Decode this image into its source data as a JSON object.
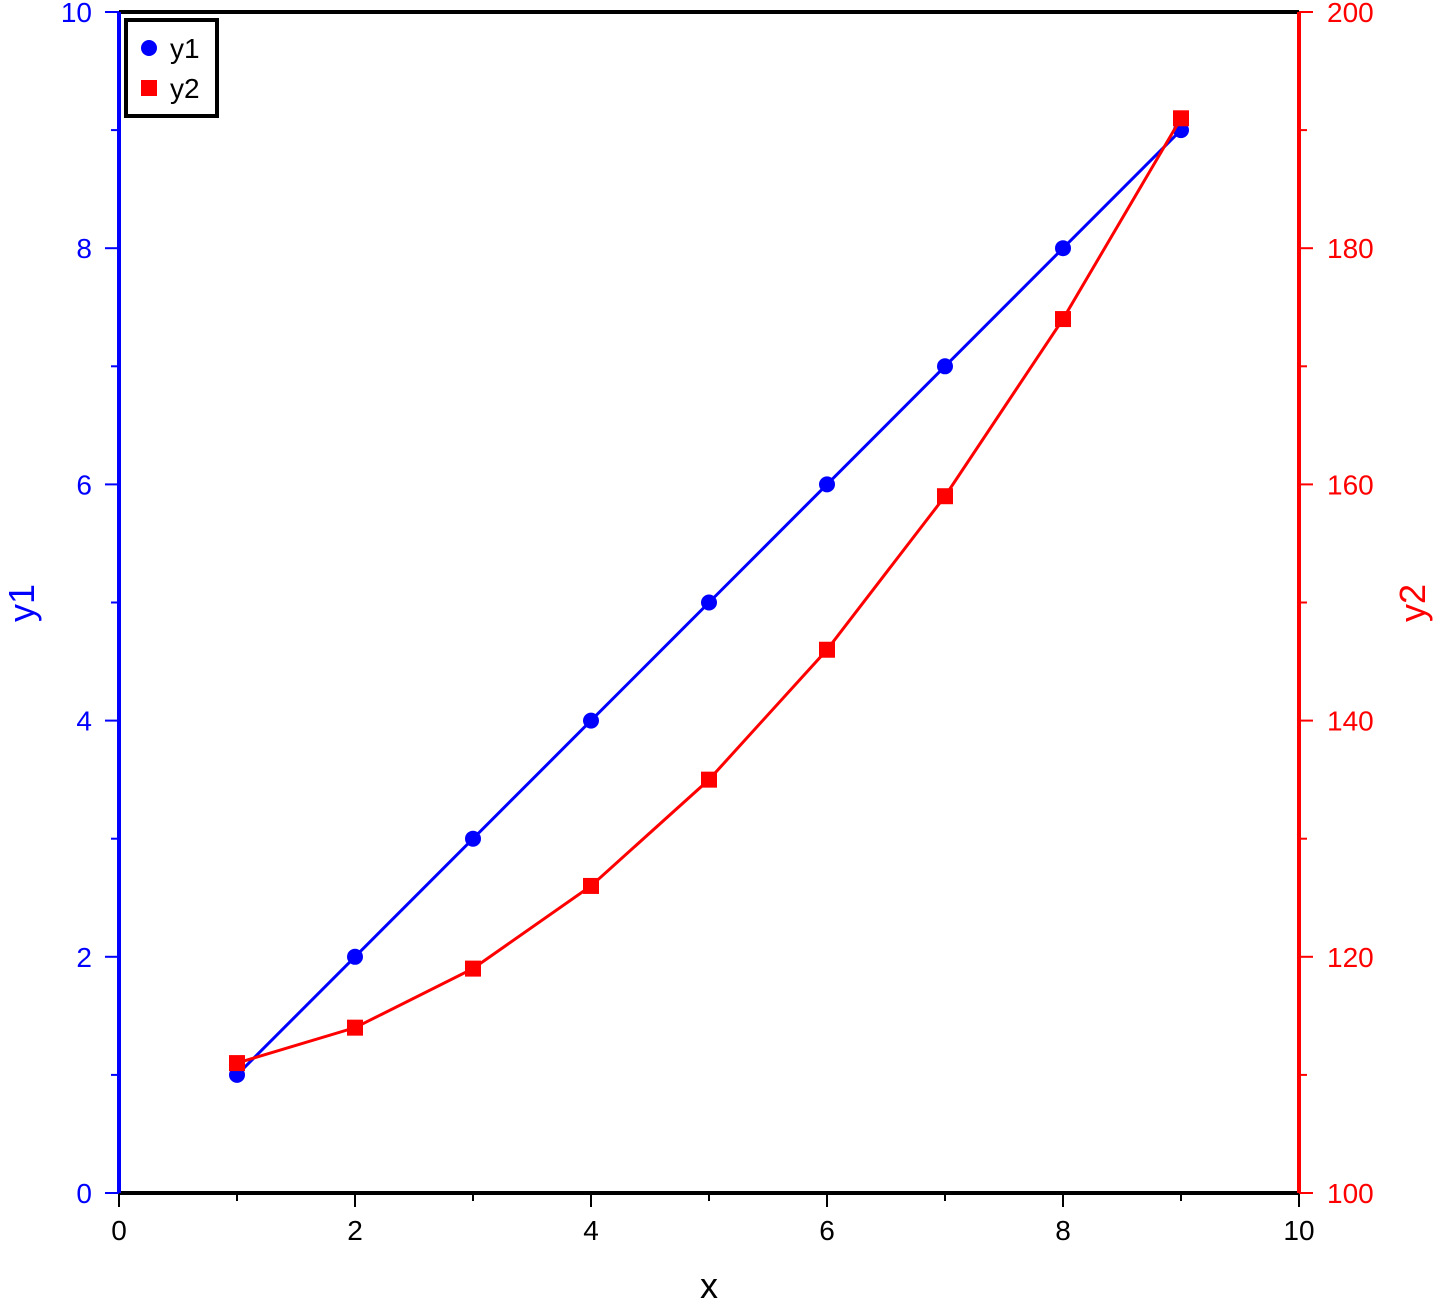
{
  "chart_data": {
    "type": "line",
    "x": [
      1,
      2,
      3,
      4,
      5,
      6,
      7,
      8,
      9
    ],
    "xlabel": "x",
    "xlim": [
      0,
      10
    ],
    "xticks": [
      "0",
      "2",
      "4",
      "6",
      "8",
      "10"
    ],
    "y1": {
      "label": "y1",
      "lim": [
        0,
        10
      ],
      "ticks": [
        "0",
        "2",
        "4",
        "6",
        "8",
        "10"
      ],
      "color": "#0000ff"
    },
    "y2": {
      "label": "y2",
      "lim": [
        100,
        200
      ],
      "ticks": [
        "100",
        "120",
        "140",
        "160",
        "180",
        "200"
      ],
      "color": "#ff0000"
    },
    "series": [
      {
        "name": "y1",
        "axis": "left",
        "marker": "circle",
        "color": "#0000ff",
        "values": [
          1,
          2,
          3,
          4,
          5,
          6,
          7,
          8,
          9
        ]
      },
      {
        "name": "y2",
        "axis": "right",
        "marker": "square",
        "color": "#ff0000",
        "values": [
          111,
          114,
          119,
          126,
          135,
          146,
          159,
          174,
          191
        ]
      }
    ],
    "legend": {
      "position": "top-left",
      "entries": [
        "y1",
        "y2"
      ]
    },
    "grid": false
  }
}
